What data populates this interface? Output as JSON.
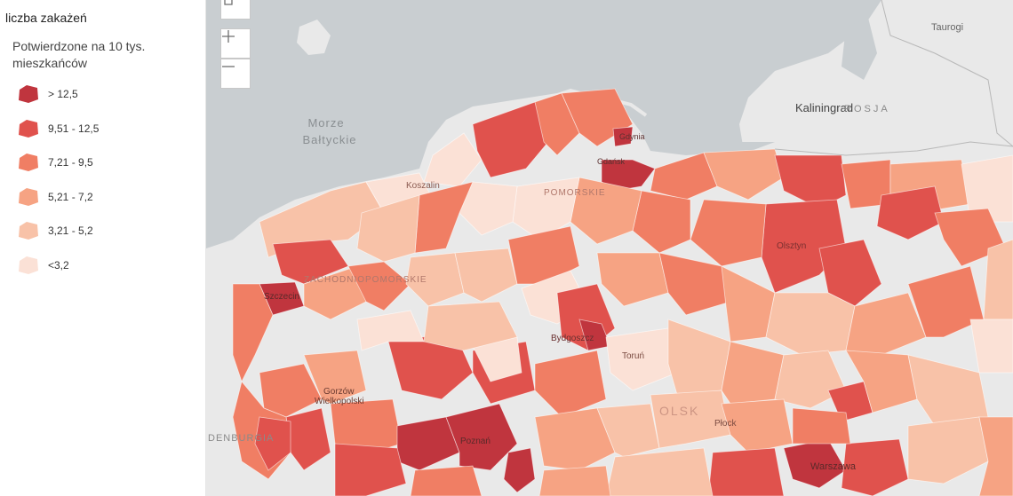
{
  "legend": {
    "title": "liczba zakażeń",
    "subtitle": "Potwierdzone na 10 tys. mieszkańców",
    "items": [
      {
        "label": "> 12,5",
        "color": "#c0353e"
      },
      {
        "label": "9,51 - 12,5",
        "color": "#e0524d"
      },
      {
        "label": "7,21 - 9,5",
        "color": "#f07e64"
      },
      {
        "label": "5,21 - 7,2",
        "color": "#f6a383"
      },
      {
        "label": "3,21 - 5,2",
        "color": "#f8c2a8"
      },
      {
        "label": "<3,2",
        "color": "#fbe1d6"
      }
    ]
  },
  "controls": {
    "home_icon": "home-icon",
    "zoom_in_icon": "plus-icon",
    "zoom_out_icon": "minus-icon"
  },
  "map": {
    "sea_color": "#c9ced1",
    "land_color": "#e9e9e9",
    "labels": {
      "sea_line1": "Morze",
      "sea_line2": "Bałtyckie",
      "kaliningrad": "Kaliningrad",
      "rosja": "ROSJA",
      "taurogi": "Taurogi",
      "koszalin": "Koszalin",
      "gdynia": "Gdynia",
      "gdansk": "Gdańsk",
      "pomorskie": "POMORSKIE",
      "olsztyn": "Olsztyn",
      "szczecin": "Szczecin",
      "zachodniopomorskie": "ZACHODNIOPOMORSKIE",
      "bydgoszcz": "Bydgoszcz",
      "torun": "Toruń",
      "gorzow1": "Gorzów",
      "gorzow2": "Wielkopolski",
      "poznan": "Poznań",
      "plock": "Płock",
      "warszawa": "Warszawa",
      "denburgia": "DENBURGIA",
      "mazowieckie": "OLSK"
    }
  }
}
